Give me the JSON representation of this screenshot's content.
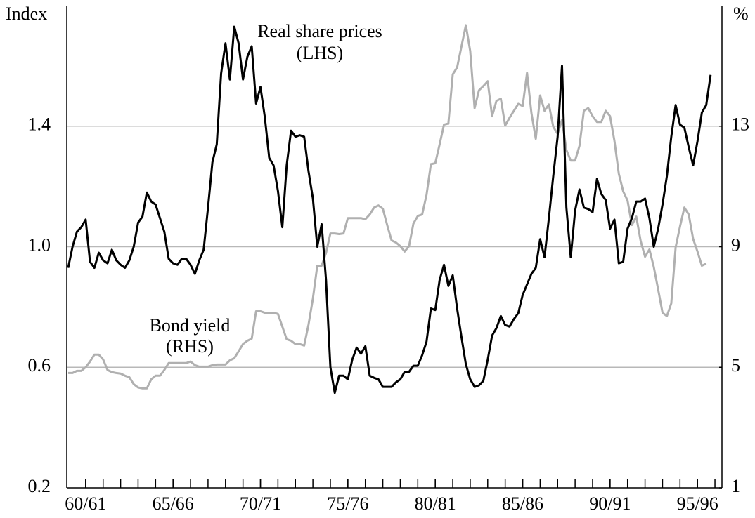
{
  "chart_data": {
    "type": "line",
    "ylabel": "Index",
    "y2label": "%",
    "x": [
      1959,
      1959.25,
      1959.5,
      1959.75,
      1960,
      1960.25,
      1960.5,
      1960.75,
      1961,
      1961.25,
      1961.5,
      1961.75,
      1962,
      1962.25,
      1962.5,
      1962.75,
      1963,
      1963.25,
      1963.5,
      1963.75,
      1964,
      1964.25,
      1964.5,
      1964.75,
      1965,
      1965.25,
      1965.5,
      1965.75,
      1966,
      1966.25,
      1966.5,
      1966.75,
      1967,
      1967.25,
      1967.5,
      1967.75,
      1968,
      1968.25,
      1968.5,
      1968.75,
      1969,
      1969.25,
      1969.5,
      1969.75,
      1970,
      1970.25,
      1970.5,
      1970.75,
      1971,
      1971.25,
      1971.5,
      1971.75,
      1972,
      1972.25,
      1972.5,
      1972.75,
      1973,
      1973.25,
      1973.5,
      1973.75,
      1974,
      1974.25,
      1974.5,
      1974.75,
      1975,
      1975.25,
      1975.5,
      1975.75,
      1976,
      1976.25,
      1976.5,
      1976.75,
      1977,
      1977.25,
      1977.5,
      1977.75,
      1978,
      1978.25,
      1978.5,
      1978.75,
      1979,
      1979.25,
      1979.5,
      1979.75,
      1980,
      1980.25,
      1980.5,
      1980.75,
      1981,
      1981.25,
      1981.5,
      1981.75,
      1982,
      1982.25,
      1982.5,
      1982.75,
      1983,
      1983.25,
      1983.5,
      1983.75,
      1984,
      1984.25,
      1984.5,
      1984.75,
      1985,
      1985.25,
      1985.5,
      1985.75,
      1986,
      1986.25,
      1986.5,
      1986.75,
      1987,
      1987.25,
      1987.5,
      1987.75,
      1988,
      1988.25,
      1988.5,
      1988.75,
      1989,
      1989.25,
      1989.5,
      1989.75,
      1990,
      1990.25,
      1990.5,
      1990.75,
      1991,
      1991.25,
      1991.5,
      1991.75,
      1992,
      1992.25,
      1992.5,
      1992.75,
      1993,
      1993.25,
      1993.5,
      1993.75,
      1994,
      1994.25,
      1994.5,
      1994.75,
      1995,
      1995.25,
      1995.5,
      1995.75
    ],
    "xlim": [
      1958.92,
      1996.4
    ],
    "xticks": [
      {
        "value": 1960,
        "label": "60/61"
      },
      {
        "value": 1965,
        "label": "65/66"
      },
      {
        "value": 1970,
        "label": "70/71"
      },
      {
        "value": 1975,
        "label": "75/76"
      },
      {
        "value": 1980,
        "label": "80/81"
      },
      {
        "value": 1985,
        "label": "85/86"
      },
      {
        "value": 1990,
        "label": "90/91"
      },
      {
        "value": 1995,
        "label": "95/96"
      }
    ],
    "xminorticks": [
      1960,
      1961,
      1962,
      1963,
      1964,
      1965,
      1966,
      1967,
      1968,
      1969,
      1970,
      1971,
      1972,
      1973,
      1974,
      1975,
      1976,
      1977,
      1978,
      1979,
      1980,
      1981,
      1982,
      1983,
      1984,
      1985,
      1986,
      1987,
      1988,
      1989,
      1990,
      1991,
      1992,
      1993,
      1994,
      1995,
      1996
    ],
    "ylim": [
      0.2,
      1.8
    ],
    "yticks": [
      0.2,
      0.6,
      {
        "value": 1.0,
        "label": "1.0"
      },
      1.4
    ],
    "y2lim": [
      1,
      17
    ],
    "y2ticks": [
      1,
      5,
      9,
      13
    ],
    "grid": true,
    "series": [
      {
        "name": "Real share prices",
        "color": "#000000",
        "values": [
          0.93,
          1.0,
          1.05,
          1.065,
          1.09,
          0.95,
          0.93,
          0.98,
          0.955,
          0.945,
          0.99,
          0.955,
          0.94,
          0.93,
          0.955,
          1.0,
          1.08,
          1.1,
          1.18,
          1.15,
          1.14,
          1.095,
          1.05,
          0.96,
          0.945,
          0.94,
          0.96,
          0.96,
          0.94,
          0.91,
          0.955,
          0.99,
          1.13,
          1.28,
          1.34,
          1.575,
          1.675,
          1.555,
          1.73,
          1.675,
          1.555,
          1.63,
          1.665,
          1.475,
          1.53,
          1.43,
          1.295,
          1.27,
          1.185,
          1.065,
          1.27,
          1.385,
          1.365,
          1.37,
          1.365,
          1.25,
          1.16,
          1.0,
          1.075,
          0.89,
          0.6,
          0.515,
          0.572,
          0.572,
          0.56,
          0.625,
          0.665,
          0.645,
          0.67,
          0.572,
          0.565,
          0.56,
          0.535,
          0.535,
          0.535,
          0.55,
          0.56,
          0.585,
          0.585,
          0.605,
          0.605,
          0.64,
          0.685,
          0.795,
          0.79,
          0.89,
          0.94,
          0.87,
          0.905,
          0.795,
          0.7,
          0.61,
          0.56,
          0.535,
          0.54,
          0.555,
          0.625,
          0.705,
          0.73,
          0.77,
          0.74,
          0.735,
          0.76,
          0.78,
          0.84,
          0.875,
          0.91,
          0.93,
          1.025,
          0.965,
          1.095,
          1.235,
          1.365,
          1.6,
          1.13,
          0.965,
          1.12,
          1.19,
          1.13,
          1.125,
          1.115,
          1.225,
          1.175,
          1.155,
          1.06,
          1.09,
          0.945,
          0.95,
          1.06,
          1.095,
          1.15,
          1.15,
          1.16,
          1.095,
          1.0,
          1.06,
          1.14,
          1.235,
          1.365,
          1.47,
          1.405,
          1.395,
          1.33,
          1.27,
          1.35,
          1.445,
          1.47,
          1.57
        ]
      },
      {
        "name": "Bond yield",
        "color": "#b0b0b0",
        "axis": "y2",
        "values": [
          4.81,
          4.81,
          4.88,
          4.88,
          5.0,
          5.19,
          5.42,
          5.42,
          5.26,
          4.91,
          4.84,
          4.81,
          4.79,
          4.72,
          4.67,
          4.44,
          4.33,
          4.3,
          4.3,
          4.6,
          4.72,
          4.72,
          4.91,
          5.14,
          5.14,
          5.14,
          5.14,
          5.14,
          5.19,
          5.07,
          5.02,
          5.02,
          5.02,
          5.07,
          5.09,
          5.09,
          5.09,
          5.23,
          5.3,
          5.53,
          5.77,
          5.88,
          5.95,
          6.86,
          6.86,
          6.81,
          6.81,
          6.81,
          6.77,
          6.35,
          5.93,
          5.88,
          5.77,
          5.77,
          5.72,
          6.42,
          7.28,
          8.37,
          8.37,
          8.79,
          9.44,
          9.44,
          9.42,
          9.44,
          9.95,
          9.95,
          9.95,
          9.95,
          9.91,
          10.07,
          10.3,
          10.37,
          10.26,
          9.72,
          9.21,
          9.14,
          9.02,
          8.84,
          9.02,
          9.77,
          10.02,
          10.07,
          10.72,
          11.74,
          11.77,
          12.4,
          13.05,
          13.09,
          14.72,
          14.95,
          15.65,
          16.35,
          15.49,
          13.6,
          14.19,
          14.33,
          14.49,
          13.33,
          13.84,
          13.91,
          13.02,
          13.28,
          13.51,
          13.74,
          13.67,
          14.77,
          13.44,
          12.58,
          14.02,
          13.51,
          13.72,
          12.98,
          12.74,
          13.21,
          12.21,
          11.86,
          11.86,
          12.35,
          13.51,
          13.6,
          13.33,
          13.14,
          13.14,
          13.51,
          13.33,
          12.51,
          11.42,
          10.84,
          10.53,
          9.72,
          10.0,
          9.19,
          8.67,
          8.91,
          8.33,
          7.58,
          6.81,
          6.7,
          7.12,
          8.98,
          9.67,
          10.3,
          10.07,
          9.26,
          8.84,
          8.37,
          8.44,
          null
        ]
      }
    ],
    "annotations": [
      "(LHS)",
      "(RHS)"
    ]
  }
}
